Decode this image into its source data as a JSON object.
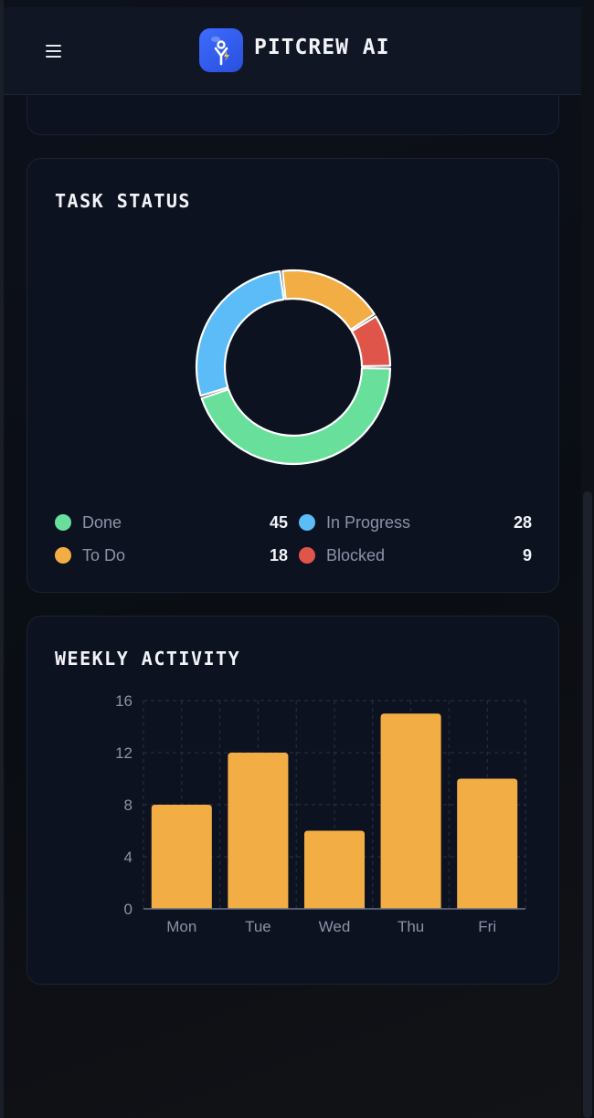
{
  "header": {
    "menu_icon": "hamburger-menu-icon",
    "logo_icon": "pitcrew-robot-icon",
    "brand": "PITCREW AI"
  },
  "task_status": {
    "title": "TASK STATUS",
    "items": [
      {
        "label": "Done",
        "value": 45,
        "color": "#68e09b"
      },
      {
        "label": "In Progress",
        "value": 28,
        "color": "#5bbcf8"
      },
      {
        "label": "To Do",
        "value": 18,
        "color": "#f2ae44"
      },
      {
        "label": "Blocked",
        "value": 9,
        "color": "#e0554a"
      }
    ]
  },
  "weekly_activity": {
    "title": "WEEKLY ACTIVITY",
    "chart_data": {
      "type": "bar",
      "categories": [
        "Mon",
        "Tue",
        "Wed",
        "Thu",
        "Fri"
      ],
      "values": [
        8,
        12,
        6,
        15,
        10
      ],
      "yticks": [
        0,
        4,
        8,
        12,
        16
      ],
      "ylim": [
        0,
        16
      ],
      "grid": true,
      "color": "#f2ae44",
      "title": "WEEKLY ACTIVITY",
      "xlabel": "",
      "ylabel": ""
    }
  }
}
